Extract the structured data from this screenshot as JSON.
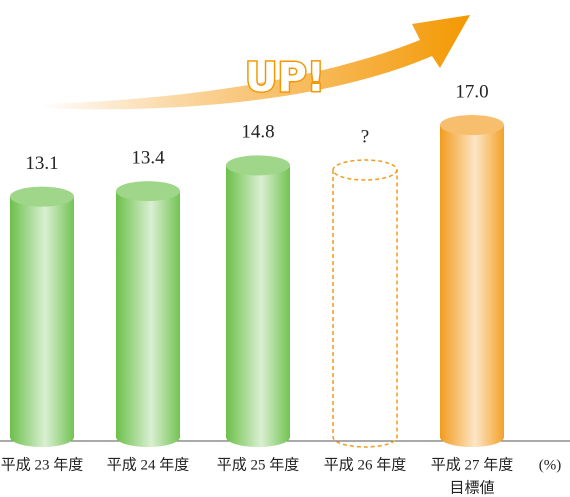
{
  "chart_data": {
    "type": "cylinder",
    "annotation": "UP!",
    "unit": "(%)",
    "categories": [
      "平成 23 年度",
      "平成 24 年度",
      "平成 25 年度",
      "平成 26 年度",
      "平成 27 年度"
    ],
    "category_notes": [
      null,
      null,
      null,
      null,
      "目標値"
    ],
    "values": [
      13.1,
      13.4,
      14.8,
      null,
      17
    ],
    "value_labels": [
      "13.1",
      "13.4",
      "14.8",
      "?",
      "17.0"
    ],
    "colors": [
      "#6cc04a",
      "#6cc04a",
      "#6cc04a",
      "#f39c1e",
      "#f39c1e"
    ]
  }
}
